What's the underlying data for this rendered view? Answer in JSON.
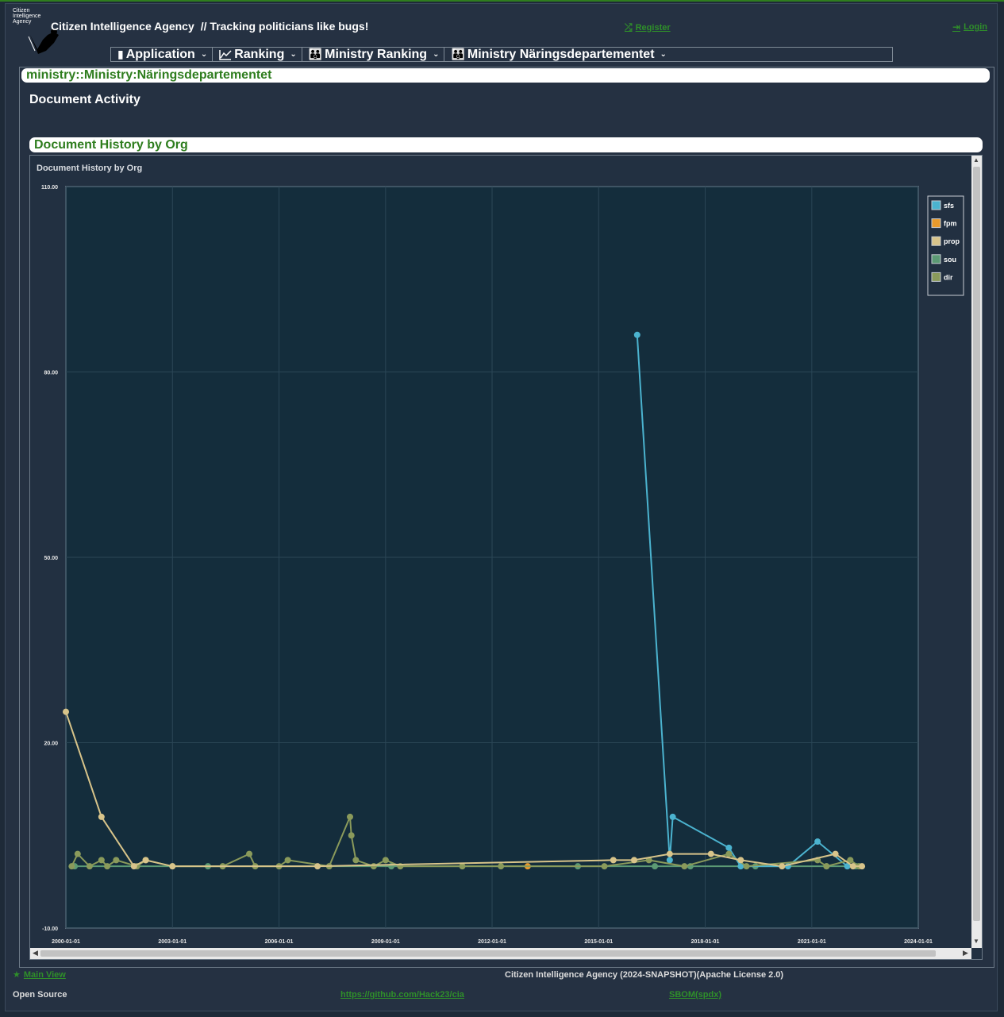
{
  "header": {
    "logo_text": "Citizen Intelligence Agency",
    "app_name": "Citizen Intelligence Agency",
    "tagline": "// Tracking politicians like bugs!",
    "register": "Register",
    "login": "Login"
  },
  "menu": [
    {
      "label": "Application",
      "icon": "document-icon"
    },
    {
      "label": "Ranking",
      "icon": "line-chart-icon"
    },
    {
      "label": "Ministry Ranking",
      "icon": "group-icon"
    },
    {
      "label": "Ministry Näringsdepartementet",
      "icon": "group-icon"
    }
  ],
  "page": {
    "title": "ministry::Ministry:Näringsdepartementet",
    "section": "Document Activity",
    "chart_panel_title": "Document History by Org"
  },
  "colors": {
    "sfs": "#4bb3cf",
    "fpm": "#e89a2c",
    "prop": "#d8c48a",
    "sou": "#5c9a74",
    "dir": "#8a9a5b",
    "plot_bg": "#142d3c",
    "accent": "#2e7d1e"
  },
  "chart_data": {
    "type": "line",
    "title": "Document History by Org",
    "xlabel": "",
    "ylabel": "",
    "ylim": [
      -10,
      110
    ],
    "xlim": [
      "2000-01-01",
      "2024-01-01"
    ],
    "yticks": [
      "-10.00",
      "20.00",
      "50.00",
      "80.00",
      "110.00"
    ],
    "xticks": [
      "2000-01-01",
      "2003-01-01",
      "2006-01-01",
      "2009-01-01",
      "2012-01-01",
      "2015-01-01",
      "2018-01-01",
      "2021-01-01",
      "2024-01-01"
    ],
    "grid": true,
    "legend_position": "top-right",
    "series": [
      {
        "name": "sfs",
        "points": [
          [
            "2016-02-01",
            86
          ],
          [
            "2017-01-01",
            1
          ],
          [
            "2017-02-01",
            8
          ],
          [
            "2018-09-01",
            3
          ],
          [
            "2019-01-01",
            0
          ],
          [
            "2020-05-01",
            0
          ],
          [
            "2021-03-01",
            4
          ],
          [
            "2022-01-01",
            0
          ]
        ]
      },
      {
        "name": "fpm",
        "points": [
          [
            "2013-01-01",
            0
          ]
        ]
      },
      {
        "name": "prop",
        "points": [
          [
            "2000-01-01",
            25
          ],
          [
            "2001-01-01",
            8
          ],
          [
            "2001-12-01",
            0
          ],
          [
            "2002-04-01",
            1
          ],
          [
            "2003-01-01",
            0
          ],
          [
            "2007-02-01",
            0
          ],
          [
            "2015-06-01",
            1
          ],
          [
            "2016-01-01",
            1
          ],
          [
            "2017-01-01",
            2
          ],
          [
            "2018-03-01",
            2
          ],
          [
            "2019-01-01",
            1
          ],
          [
            "2020-03-01",
            0
          ],
          [
            "2021-09-01",
            2
          ],
          [
            "2022-03-01",
            0
          ],
          [
            "2022-06-01",
            0
          ]
        ]
      },
      {
        "name": "sou",
        "points": [
          [
            "2000-04-01",
            0
          ],
          [
            "2004-01-01",
            0
          ],
          [
            "2009-03-01",
            0
          ],
          [
            "2014-06-01",
            0
          ],
          [
            "2016-08-01",
            0
          ],
          [
            "2017-08-01",
            0
          ],
          [
            "2019-06-01",
            0
          ],
          [
            "2021-06-01",
            0
          ],
          [
            "2022-04-01",
            0
          ]
        ]
      },
      {
        "name": "dir",
        "points": [
          [
            "2000-03-01",
            0
          ],
          [
            "2000-05-01",
            2
          ],
          [
            "2000-09-01",
            0
          ],
          [
            "2001-01-01",
            1
          ],
          [
            "2001-03-01",
            0
          ],
          [
            "2001-06-01",
            1
          ],
          [
            "2002-01-01",
            0
          ],
          [
            "2002-04-01",
            1
          ],
          [
            "2003-01-01",
            0
          ],
          [
            "2004-06-01",
            0
          ],
          [
            "2005-03-01",
            2
          ],
          [
            "2005-05-01",
            0
          ],
          [
            "2006-01-01",
            0
          ],
          [
            "2006-04-01",
            1
          ],
          [
            "2007-06-01",
            0
          ],
          [
            "2008-01-01",
            8
          ],
          [
            "2008-01-15",
            5
          ],
          [
            "2008-03-01",
            1
          ],
          [
            "2008-09-01",
            0
          ],
          [
            "2009-01-01",
            1
          ],
          [
            "2009-06-01",
            0
          ],
          [
            "2011-03-01",
            0
          ],
          [
            "2012-04-01",
            0
          ],
          [
            "2015-03-01",
            0
          ],
          [
            "2016-06-01",
            1
          ],
          [
            "2017-06-01",
            0
          ],
          [
            "2018-09-01",
            2
          ],
          [
            "2019-03-01",
            0
          ],
          [
            "2021-03-01",
            1
          ],
          [
            "2021-06-01",
            0
          ],
          [
            "2022-02-01",
            1
          ],
          [
            "2022-05-01",
            0
          ]
        ]
      }
    ]
  },
  "footer": {
    "main_view": "Main View",
    "cia_version": "Citizen Intelligence Agency (2024-SNAPSHOT)(Apache License 2.0)",
    "open_source": "Open Source",
    "github": "https://github.com/Hack23/cia",
    "sbom": "SBOM(spdx)"
  }
}
